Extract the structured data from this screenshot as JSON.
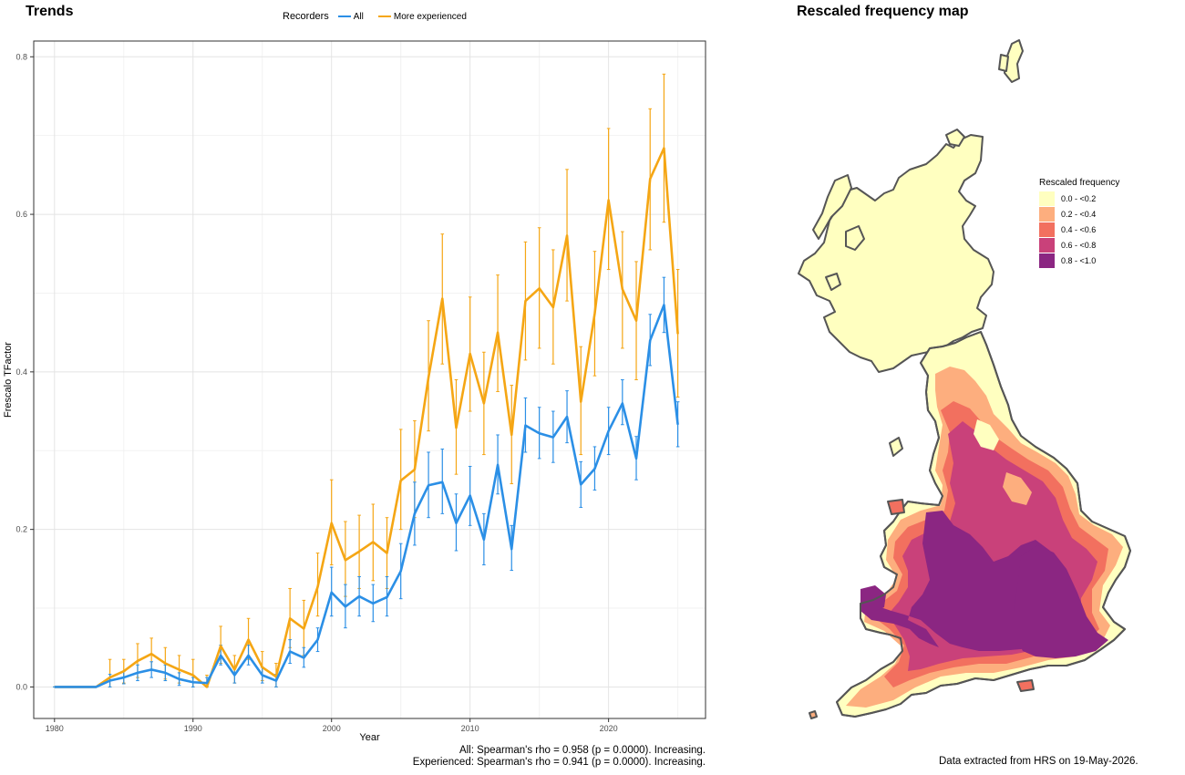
{
  "trends": {
    "title": "Trends",
    "legend_title": "Recorders",
    "stats_all": "All: Spearman's rho = 0.958 (p = 0.0000). Increasing.",
    "stats_experienced": "Experienced: Spearman's rho = 0.941 (p = 0.0000). Increasing."
  },
  "chart_data": {
    "type": "line",
    "xlabel": "Year",
    "ylabel": "Frescalo TFactor",
    "xlim": [
      1978.5,
      2027
    ],
    "ylim": [
      -0.04,
      0.82
    ],
    "x_ticks": [
      1980,
      1990,
      2000,
      2010,
      2020
    ],
    "y_ticks": [
      "0.0",
      "0.2",
      "0.4",
      "0.6",
      "0.8"
    ],
    "y_tick_values": [
      0,
      0.2,
      0.4,
      0.6,
      0.8
    ],
    "grid": true,
    "legend_position": "top",
    "x": [
      1980,
      1981,
      1982,
      1983,
      1984,
      1985,
      1986,
      1987,
      1988,
      1989,
      1990,
      1991,
      1992,
      1993,
      1994,
      1995,
      1996,
      1997,
      1998,
      1999,
      2000,
      2001,
      2002,
      2003,
      2004,
      2005,
      2006,
      2007,
      2008,
      2009,
      2010,
      2011,
      2012,
      2013,
      2014,
      2015,
      2016,
      2017,
      2018,
      2019,
      2020,
      2021,
      2022,
      2023,
      2024,
      2025
    ],
    "series": [
      {
        "name": "All",
        "color": "#2B8FE6",
        "values": [
          0.0,
          0.0,
          0.0,
          0.0,
          0.008,
          0.012,
          0.018,
          0.022,
          0.018,
          0.01,
          0.006,
          0.005,
          0.04,
          0.015,
          0.04,
          0.015,
          0.008,
          0.045,
          0.037,
          0.06,
          0.12,
          0.102,
          0.115,
          0.106,
          0.114,
          0.147,
          0.22,
          0.256,
          0.26,
          0.208,
          0.243,
          0.187,
          0.282,
          0.175,
          0.332,
          0.322,
          0.317,
          0.343,
          0.257,
          0.277,
          0.325,
          0.36,
          0.29,
          0.44,
          0.485,
          0.333
        ],
        "lower": [
          0.0,
          0.0,
          0.0,
          0.0,
          0.0,
          0.004,
          0.008,
          0.012,
          0.008,
          0.002,
          0.0,
          0.0,
          0.028,
          0.005,
          0.028,
          0.005,
          0.0,
          0.03,
          0.025,
          0.045,
          0.09,
          0.075,
          0.09,
          0.083,
          0.09,
          0.112,
          0.18,
          0.215,
          0.22,
          0.173,
          0.205,
          0.155,
          0.245,
          0.148,
          0.298,
          0.29,
          0.285,
          0.31,
          0.228,
          0.25,
          0.295,
          0.333,
          0.263,
          0.408,
          0.45,
          0.305
        ],
        "upper": [
          0.0,
          0.0,
          0.0,
          0.0,
          0.016,
          0.02,
          0.028,
          0.032,
          0.028,
          0.018,
          0.012,
          0.012,
          0.053,
          0.025,
          0.053,
          0.025,
          0.016,
          0.06,
          0.05,
          0.075,
          0.152,
          0.13,
          0.14,
          0.13,
          0.14,
          0.182,
          0.26,
          0.298,
          0.302,
          0.245,
          0.28,
          0.22,
          0.32,
          0.205,
          0.367,
          0.355,
          0.35,
          0.376,
          0.286,
          0.305,
          0.355,
          0.39,
          0.318,
          0.473,
          0.52,
          0.362
        ]
      },
      {
        "name": "More experienced",
        "color": "#F5A614",
        "values": [
          0.0,
          0.0,
          0.0,
          0.0,
          0.012,
          0.02,
          0.033,
          0.042,
          0.03,
          0.022,
          0.015,
          0.0,
          0.052,
          0.022,
          0.06,
          0.025,
          0.013,
          0.087,
          0.074,
          0.127,
          0.208,
          0.161,
          0.172,
          0.184,
          0.17,
          0.262,
          0.276,
          0.393,
          0.493,
          0.329,
          0.423,
          0.36,
          0.45,
          0.32,
          0.49,
          0.506,
          0.482,
          0.573,
          0.362,
          0.474,
          0.618,
          0.505,
          0.465,
          0.645,
          0.684,
          0.448
        ],
        "lower": [
          0.0,
          0.0,
          0.0,
          0.0,
          0.0,
          0.005,
          0.012,
          0.022,
          0.01,
          0.005,
          0.0,
          0.0,
          0.03,
          0.005,
          0.035,
          0.008,
          0.0,
          0.05,
          0.04,
          0.09,
          0.155,
          0.115,
          0.125,
          0.135,
          0.125,
          0.2,
          0.215,
          0.325,
          0.41,
          0.27,
          0.35,
          0.295,
          0.375,
          0.258,
          0.415,
          0.43,
          0.41,
          0.49,
          0.295,
          0.395,
          0.53,
          0.43,
          0.39,
          0.555,
          0.59,
          0.368
        ],
        "upper": [
          0.0,
          0.0,
          0.0,
          0.0,
          0.035,
          0.035,
          0.055,
          0.062,
          0.05,
          0.04,
          0.035,
          0.015,
          0.077,
          0.04,
          0.087,
          0.045,
          0.03,
          0.125,
          0.11,
          0.17,
          0.263,
          0.21,
          0.218,
          0.232,
          0.215,
          0.327,
          0.338,
          0.465,
          0.575,
          0.39,
          0.495,
          0.425,
          0.523,
          0.383,
          0.565,
          0.583,
          0.555,
          0.657,
          0.432,
          0.553,
          0.709,
          0.578,
          0.54,
          0.734,
          0.778,
          0.53
        ]
      }
    ]
  },
  "map": {
    "title": "Rescaled frequency map",
    "legend_title": "Rescaled frequency",
    "legend": [
      {
        "label": "0.0 - <0.2",
        "color": "#FFFFC0"
      },
      {
        "label": "0.2 - <0.4",
        "color": "#FDAE7E"
      },
      {
        "label": "0.4 - <0.6",
        "color": "#F2705F"
      },
      {
        "label": "0.6 - <0.8",
        "color": "#C9417A"
      },
      {
        "label": "0.8 - <1.0",
        "color": "#8B2682"
      }
    ],
    "outline_color": "#555555"
  },
  "footer": {
    "extract": "Data extracted from HRS on 19-May-2026."
  }
}
